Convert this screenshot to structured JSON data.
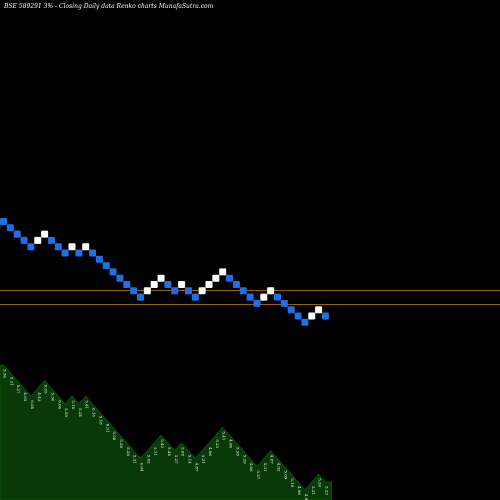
{
  "chart_data": {
    "type": "renko",
    "title": "BSE 589291 3% - Closing Daily data Renko charts MunafaSutra.com",
    "bricks": [
      {
        "d": "down",
        "v": 92.0
      },
      {
        "d": "down",
        "v": 90.5
      },
      {
        "d": "down",
        "v": 89.0
      },
      {
        "d": "down",
        "v": 87.5
      },
      {
        "d": "down",
        "v": 86.0
      },
      {
        "d": "up",
        "v": 87.5
      },
      {
        "d": "up",
        "v": 89.0
      },
      {
        "d": "down",
        "v": 87.5
      },
      {
        "d": "down",
        "v": 86.0
      },
      {
        "d": "down",
        "v": 84.5
      },
      {
        "d": "up",
        "v": 86.0
      },
      {
        "d": "down",
        "v": 84.5
      },
      {
        "d": "up",
        "v": 86.0
      },
      {
        "d": "down",
        "v": 84.5
      },
      {
        "d": "down",
        "v": 83.0
      },
      {
        "d": "down",
        "v": 81.5
      },
      {
        "d": "down",
        "v": 80.0
      },
      {
        "d": "down",
        "v": 78.5
      },
      {
        "d": "down",
        "v": 77.0
      },
      {
        "d": "down",
        "v": 75.5
      },
      {
        "d": "down",
        "v": 74.0
      },
      {
        "d": "up",
        "v": 75.5
      },
      {
        "d": "up",
        "v": 77.0
      },
      {
        "d": "up",
        "v": 78.5
      },
      {
        "d": "down",
        "v": 77.0
      },
      {
        "d": "down",
        "v": 75.5
      },
      {
        "d": "up",
        "v": 77.0
      },
      {
        "d": "down",
        "v": 75.5
      },
      {
        "d": "down",
        "v": 74.0
      },
      {
        "d": "up",
        "v": 75.5
      },
      {
        "d": "up",
        "v": 77.0
      },
      {
        "d": "up",
        "v": 78.5
      },
      {
        "d": "up",
        "v": 80.0
      },
      {
        "d": "down",
        "v": 78.5
      },
      {
        "d": "down",
        "v": 77.0
      },
      {
        "d": "down",
        "v": 75.5
      },
      {
        "d": "down",
        "v": 74.0
      },
      {
        "d": "down",
        "v": 72.5
      },
      {
        "d": "up",
        "v": 74.0
      },
      {
        "d": "up",
        "v": 75.5
      },
      {
        "d": "down",
        "v": 74.0
      },
      {
        "d": "down",
        "v": 72.5
      },
      {
        "d": "down",
        "v": 71.0
      },
      {
        "d": "down",
        "v": 69.5
      },
      {
        "d": "down",
        "v": 68.0
      },
      {
        "d": "up",
        "v": 69.5
      },
      {
        "d": "up",
        "v": 71.0
      },
      {
        "d": "down",
        "v": 69.5
      }
    ],
    "reference_lines": [
      75.6,
      72.2
    ],
    "value_labels": [
      "5.36",
      "5.31",
      "5.27",
      "4.65",
      "6.04",
      "4.43",
      "6.05",
      "5.36",
      "6.06",
      "5.29",
      "5.18",
      "5.34",
      "5.41",
      "6.16",
      "5.18",
      "6.31",
      "5.08",
      "5.26",
      "5.28",
      "5.31",
      "6.04",
      "5.02",
      "5.11",
      "5.43",
      "5.48",
      "5.27",
      "5.08",
      "5.14",
      "4.87",
      "5.21",
      "4.96",
      "5.23",
      "5.41",
      "4.96",
      "5.38",
      "5.29",
      "4.66",
      "5.27",
      "5.31",
      "4.87",
      "4.92",
      "5.09",
      "5.19",
      "4.96",
      "4.97",
      "5.21",
      "5.30",
      "5.33"
    ],
    "colors": {
      "up": "#ffffff",
      "down": "#1e6fe8",
      "reference_line": "#c8820a",
      "area_fill": "#073a06",
      "area_stroke": "#0b5a09",
      "background": "#000000"
    }
  }
}
